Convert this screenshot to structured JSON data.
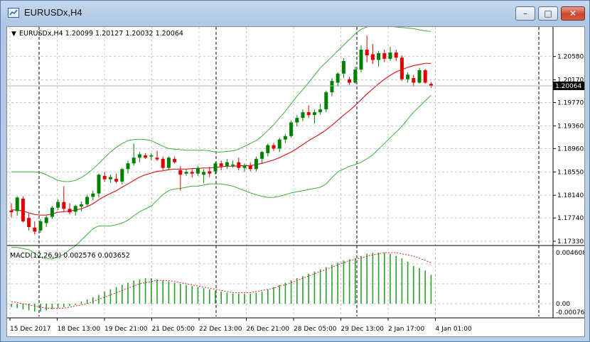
{
  "window": {
    "title": "EURUSDx,H4",
    "min_glyph": "–",
    "max_glyph": "□",
    "close_glyph": "✕"
  },
  "main_panel": {
    "header": "EURUSDx,H4  1.20099 1.20127 1.20032 1.20064",
    "menu_glyph": "▼",
    "price_scale": [
      "1.20580",
      "1.20170",
      "1.19770",
      "1.19360",
      "1.18960",
      "1.18550",
      "1.18140",
      "1.17740",
      "1.17330"
    ],
    "current_price": "1.20064",
    "current_price_color": "#000000"
  },
  "sub_panel": {
    "header": "MACD(12,26,9) 0.002576 0.003652",
    "scale": [
      "0.004608",
      "0.00",
      "-0.00076"
    ]
  },
  "time_axis": [
    "15 Dec 2017",
    "18 Dec 13:00",
    "19 Dec 21:00",
    "21 Dec 05:00",
    "22 Dec 13:00",
    "26 Dec 21:00",
    "28 Dec 05:00",
    "29 Dec 13:00",
    "2 Jan 17:00",
    "4 Jan 01:00"
  ],
  "colors": {
    "bull": "#008000",
    "bear": "#e00000",
    "ma": "#d62020",
    "bands": "#3ab03a",
    "macd_hist": "#2aa02a",
    "macd_signal": "#e02020"
  },
  "chart_data": {
    "type": "candlestick",
    "symbol": "EURUSDx",
    "timeframe": "H4",
    "candles": [
      {
        "o": 1.1787,
        "h": 1.18,
        "l": 1.1775,
        "c": 1.1784
      },
      {
        "o": 1.1786,
        "h": 1.1812,
        "l": 1.1778,
        "c": 1.181
      },
      {
        "o": 1.1808,
        "h": 1.1812,
        "l": 1.1766,
        "c": 1.1768
      },
      {
        "o": 1.1774,
        "h": 1.1782,
        "l": 1.1752,
        "c": 1.1758
      },
      {
        "o": 1.1757,
        "h": 1.1768,
        "l": 1.1745,
        "c": 1.175
      },
      {
        "o": 1.1752,
        "h": 1.1772,
        "l": 1.1748,
        "c": 1.1768
      },
      {
        "o": 1.1765,
        "h": 1.1778,
        "l": 1.1758,
        "c": 1.1775
      },
      {
        "o": 1.1776,
        "h": 1.1795,
        "l": 1.1772,
        "c": 1.1792
      },
      {
        "o": 1.1792,
        "h": 1.1807,
        "l": 1.1788,
        "c": 1.1802
      },
      {
        "o": 1.1802,
        "h": 1.183,
        "l": 1.1786,
        "c": 1.179
      },
      {
        "o": 1.179,
        "h": 1.18,
        "l": 1.178,
        "c": 1.1784
      },
      {
        "o": 1.1785,
        "h": 1.1797,
        "l": 1.1778,
        "c": 1.1795
      },
      {
        "o": 1.1794,
        "h": 1.1803,
        "l": 1.1786,
        "c": 1.1798
      },
      {
        "o": 1.1798,
        "h": 1.1815,
        "l": 1.1795,
        "c": 1.1811
      },
      {
        "o": 1.1811,
        "h": 1.1822,
        "l": 1.1805,
        "c": 1.1817
      },
      {
        "o": 1.1817,
        "h": 1.1852,
        "l": 1.181,
        "c": 1.185
      },
      {
        "o": 1.1848,
        "h": 1.1855,
        "l": 1.1838,
        "c": 1.1842
      },
      {
        "o": 1.1842,
        "h": 1.185,
        "l": 1.1836,
        "c": 1.1846
      },
      {
        "o": 1.1843,
        "h": 1.1852,
        "l": 1.1835,
        "c": 1.1838
      },
      {
        "o": 1.1838,
        "h": 1.1862,
        "l": 1.1833,
        "c": 1.186
      },
      {
        "o": 1.186,
        "h": 1.1875,
        "l": 1.1852,
        "c": 1.187
      },
      {
        "o": 1.187,
        "h": 1.1905,
        "l": 1.1866,
        "c": 1.188
      },
      {
        "o": 1.188,
        "h": 1.189,
        "l": 1.1872,
        "c": 1.1886
      },
      {
        "o": 1.1884,
        "h": 1.1888,
        "l": 1.1878,
        "c": 1.188
      },
      {
        "o": 1.1882,
        "h": 1.1888,
        "l": 1.1876,
        "c": 1.1884
      },
      {
        "o": 1.188,
        "h": 1.1892,
        "l": 1.1874,
        "c": 1.1877
      },
      {
        "o": 1.1878,
        "h": 1.1882,
        "l": 1.1858,
        "c": 1.1862
      },
      {
        "o": 1.1862,
        "h": 1.1882,
        "l": 1.1858,
        "c": 1.188
      },
      {
        "o": 1.1878,
        "h": 1.1882,
        "l": 1.187,
        "c": 1.1872
      },
      {
        "o": 1.1858,
        "h": 1.1865,
        "l": 1.1822,
        "c": 1.185
      },
      {
        "o": 1.1852,
        "h": 1.186,
        "l": 1.1848,
        "c": 1.1855
      },
      {
        "o": 1.1855,
        "h": 1.186,
        "l": 1.1845,
        "c": 1.1852
      },
      {
        "o": 1.1852,
        "h": 1.1865,
        "l": 1.1848,
        "c": 1.1862
      },
      {
        "o": 1.185,
        "h": 1.186,
        "l": 1.1835,
        "c": 1.1855
      },
      {
        "o": 1.1856,
        "h": 1.1864,
        "l": 1.1846,
        "c": 1.1852
      },
      {
        "o": 1.1856,
        "h": 1.1872,
        "l": 1.185,
        "c": 1.187
      },
      {
        "o": 1.187,
        "h": 1.1875,
        "l": 1.1858,
        "c": 1.1865
      },
      {
        "o": 1.1865,
        "h": 1.1878,
        "l": 1.186,
        "c": 1.1872
      },
      {
        "o": 1.1866,
        "h": 1.1875,
        "l": 1.1862,
        "c": 1.1868
      },
      {
        "o": 1.1872,
        "h": 1.188,
        "l": 1.1858,
        "c": 1.1862
      },
      {
        "o": 1.1862,
        "h": 1.187,
        "l": 1.1855,
        "c": 1.1866
      },
      {
        "o": 1.1866,
        "h": 1.1872,
        "l": 1.1856,
        "c": 1.186
      },
      {
        "o": 1.186,
        "h": 1.1882,
        "l": 1.1856,
        "c": 1.1878
      },
      {
        "o": 1.1878,
        "h": 1.1892,
        "l": 1.187,
        "c": 1.189
      },
      {
        "o": 1.1888,
        "h": 1.1905,
        "l": 1.1882,
        "c": 1.1902
      },
      {
        "o": 1.1902,
        "h": 1.1906,
        "l": 1.1892,
        "c": 1.1896
      },
      {
        "o": 1.1896,
        "h": 1.1915,
        "l": 1.189,
        "c": 1.1912
      },
      {
        "o": 1.1912,
        "h": 1.1922,
        "l": 1.1906,
        "c": 1.1918
      },
      {
        "o": 1.1918,
        "h": 1.1945,
        "l": 1.1915,
        "c": 1.1942
      },
      {
        "o": 1.1942,
        "h": 1.1955,
        "l": 1.1935,
        "c": 1.195
      },
      {
        "o": 1.195,
        "h": 1.1965,
        "l": 1.1944,
        "c": 1.196
      },
      {
        "o": 1.196,
        "h": 1.1972,
        "l": 1.195,
        "c": 1.1955
      },
      {
        "o": 1.1955,
        "h": 1.1965,
        "l": 1.194,
        "c": 1.196
      },
      {
        "o": 1.196,
        "h": 1.1975,
        "l": 1.1956,
        "c": 1.1965
      },
      {
        "o": 1.1965,
        "h": 1.1998,
        "l": 1.196,
        "c": 1.1995
      },
      {
        "o": 1.1995,
        "h": 1.202,
        "l": 1.1988,
        "c": 1.2015
      },
      {
        "o": 1.2012,
        "h": 1.203,
        "l": 1.2005,
        "c": 1.2028
      },
      {
        "o": 1.2028,
        "h": 1.2055,
        "l": 1.202,
        "c": 1.205
      },
      {
        "o": 1.2018,
        "h": 1.2022,
        "l": 1.2008,
        "c": 1.2012
      },
      {
        "o": 1.2012,
        "h": 1.204,
        "l": 1.201,
        "c": 1.2035
      },
      {
        "o": 1.2035,
        "h": 1.2078,
        "l": 1.203,
        "c": 1.207
      },
      {
        "o": 1.207,
        "h": 1.2095,
        "l": 1.2048,
        "c": 1.206
      },
      {
        "o": 1.2062,
        "h": 1.208,
        "l": 1.2045,
        "c": 1.2052
      },
      {
        "o": 1.2052,
        "h": 1.2068,
        "l": 1.204,
        "c": 1.2064
      },
      {
        "o": 1.2064,
        "h": 1.207,
        "l": 1.2048,
        "c": 1.2054
      },
      {
        "o": 1.2054,
        "h": 1.2075,
        "l": 1.205,
        "c": 1.2065
      },
      {
        "o": 1.2065,
        "h": 1.207,
        "l": 1.205,
        "c": 1.2056
      },
      {
        "o": 1.2056,
        "h": 1.206,
        "l": 1.2015,
        "c": 1.2018
      },
      {
        "o": 1.2018,
        "h": 1.203,
        "l": 1.2012,
        "c": 1.2026
      },
      {
        "o": 1.202,
        "h": 1.2026,
        "l": 1.2005,
        "c": 1.2012
      },
      {
        "o": 1.2012,
        "h": 1.2038,
        "l": 1.201,
        "c": 1.2034
      },
      {
        "o": 1.2034,
        "h": 1.2036,
        "l": 1.201,
        "c": 1.2012
      },
      {
        "o": 1.20099,
        "h": 1.20127,
        "l": 1.20032,
        "c": 1.20064
      }
    ],
    "ma": [
      1.1788,
      1.1788,
      1.1786,
      1.1783,
      1.178,
      1.1779,
      1.1779,
      1.1781,
      1.1784,
      1.1785,
      1.1786,
      1.1788,
      1.179,
      1.1794,
      1.1799,
      1.1806,
      1.1812,
      1.1817,
      1.1822,
      1.1828,
      1.1834,
      1.184,
      1.1846,
      1.185,
      1.1853,
      1.1856,
      1.1857,
      1.1859,
      1.186,
      1.186,
      1.186,
      1.1861,
      1.1861,
      1.1862,
      1.1862,
      1.1863,
      1.1864,
      1.1865,
      1.1865,
      1.1866,
      1.1866,
      1.1866,
      1.1868,
      1.187,
      1.1873,
      1.1876,
      1.188,
      1.1885,
      1.189,
      1.1896,
      1.1903,
      1.191,
      1.1916,
      1.1922,
      1.1929,
      1.1937,
      1.1946,
      1.1955,
      1.1963,
      1.1972,
      1.1982,
      1.1992,
      1.2001,
      1.201,
      1.2018,
      1.2025,
      1.2031,
      1.2035,
      1.2039,
      1.2042,
      1.2044,
      1.2046,
      1.2046
    ],
    "bb_upper": [
      1.1855,
      1.1855,
      1.1855,
      1.1855,
      1.1855,
      1.1854,
      1.185,
      1.1845,
      1.184,
      1.1838,
      1.1838,
      1.184,
      1.1845,
      1.1852,
      1.186,
      1.187,
      1.188,
      1.189,
      1.1898,
      1.1905,
      1.191,
      1.1912,
      1.1912,
      1.1912,
      1.191,
      1.1905,
      1.19,
      1.1896,
      1.1895,
      1.1894,
      1.1893,
      1.1893,
      1.1893,
      1.1893,
      1.1892,
      1.189,
      1.189,
      1.1891,
      1.1892,
      1.1895,
      1.19,
      1.1905,
      1.191,
      1.1918,
      1.1928,
      1.1938,
      1.195,
      1.1962,
      1.1975,
      1.1988,
      1.2,
      1.2012,
      1.2025,
      1.2038,
      1.2048,
      1.2058,
      1.2068,
      1.2078,
      1.2088,
      1.2098,
      1.2106,
      1.211,
      1.2112,
      1.2112,
      1.2112,
      1.2111,
      1.211,
      1.2109,
      1.2108,
      1.2107,
      1.2105,
      1.2103,
      1.2102
    ],
    "bb_lower": [
      1.1722,
      1.1722,
      1.172,
      1.1718,
      1.1712,
      1.1705,
      1.1702,
      1.1702,
      1.1705,
      1.171,
      1.1718,
      1.1725,
      1.1735,
      1.1745,
      1.1755,
      1.176,
      1.176,
      1.176,
      1.1762,
      1.1765,
      1.177,
      1.1778,
      1.1785,
      1.179,
      1.1795,
      1.1805,
      1.1815,
      1.1822,
      1.1825,
      1.1826,
      1.1828,
      1.183,
      1.183,
      1.1832,
      1.1834,
      1.1834,
      1.1834,
      1.1832,
      1.183,
      1.1826,
      1.1822,
      1.1818,
      1.1815,
      1.1812,
      1.181,
      1.181,
      1.1812,
      1.1815,
      1.1818,
      1.182,
      1.1822,
      1.1824,
      1.1826,
      1.1828,
      1.1834,
      1.1845,
      1.1855,
      1.186,
      1.1865,
      1.1868,
      1.1872,
      1.1878,
      1.1885,
      1.1895,
      1.1905,
      1.1915,
      1.1925,
      1.1935,
      1.1948,
      1.196,
      1.197,
      1.198,
      1.199
    ],
    "macd_hist": [
      -0.0003,
      -0.0004,
      -0.0005,
      -0.0006,
      -0.0007,
      -0.0007,
      -0.0006,
      -0.0005,
      -0.0004,
      -0.0003,
      -0.0002,
      -0.0001,
      0.0002,
      0.0004,
      0.0006,
      0.0008,
      0.0011,
      0.0013,
      0.0015,
      0.0017,
      0.0019,
      0.0021,
      0.0022,
      0.0023,
      0.0023,
      0.0022,
      0.0021,
      0.002,
      0.0019,
      0.0018,
      0.0017,
      0.0016,
      0.0015,
      0.0014,
      0.0013,
      0.0012,
      0.0011,
      0.001,
      0.0009,
      0.0009,
      0.0009,
      0.0009,
      0.001,
      0.0011,
      0.0013,
      0.0015,
      0.0017,
      0.0019,
      0.0021,
      0.0023,
      0.0025,
      0.0027,
      0.0029,
      0.0031,
      0.0033,
      0.0035,
      0.0037,
      0.0039,
      0.004,
      0.0041,
      0.0043,
      0.0045,
      0.0046,
      0.0046,
      0.0046,
      0.0045,
      0.0043,
      0.0041,
      0.0038,
      0.0034,
      0.0032,
      0.003,
      0.0026
    ],
    "macd_signal": [
      0.0002,
      0.0001,
      0.0,
      -0.0001,
      -0.0002,
      -0.0003,
      -0.0004,
      -0.0004,
      -0.0004,
      -0.0004,
      -0.0003,
      -0.0002,
      -0.0001,
      0.0,
      0.0002,
      0.0004,
      0.0006,
      0.0008,
      0.001,
      0.0012,
      0.0014,
      0.0016,
      0.0018,
      0.0019,
      0.002,
      0.0021,
      0.0021,
      0.0021,
      0.002,
      0.0019,
      0.0018,
      0.0017,
      0.0016,
      0.0015,
      0.0014,
      0.0013,
      0.0012,
      0.0011,
      0.001,
      0.001,
      0.001,
      0.001,
      0.0011,
      0.0012,
      0.0013,
      0.0014,
      0.0016,
      0.0017,
      0.0019,
      0.0021,
      0.0023,
      0.0025,
      0.0027,
      0.0029,
      0.0031,
      0.0033,
      0.0035,
      0.0037,
      0.0039,
      0.004,
      0.0041,
      0.0043,
      0.0044,
      0.0045,
      0.0046,
      0.0046,
      0.0046,
      0.0045,
      0.0044,
      0.0043,
      0.0041,
      0.0039,
      0.0037
    ],
    "price_range": [
      1.1733,
      1.2105
    ],
    "macd_range": [
      -0.00076,
      0.004608
    ],
    "grid": true
  }
}
